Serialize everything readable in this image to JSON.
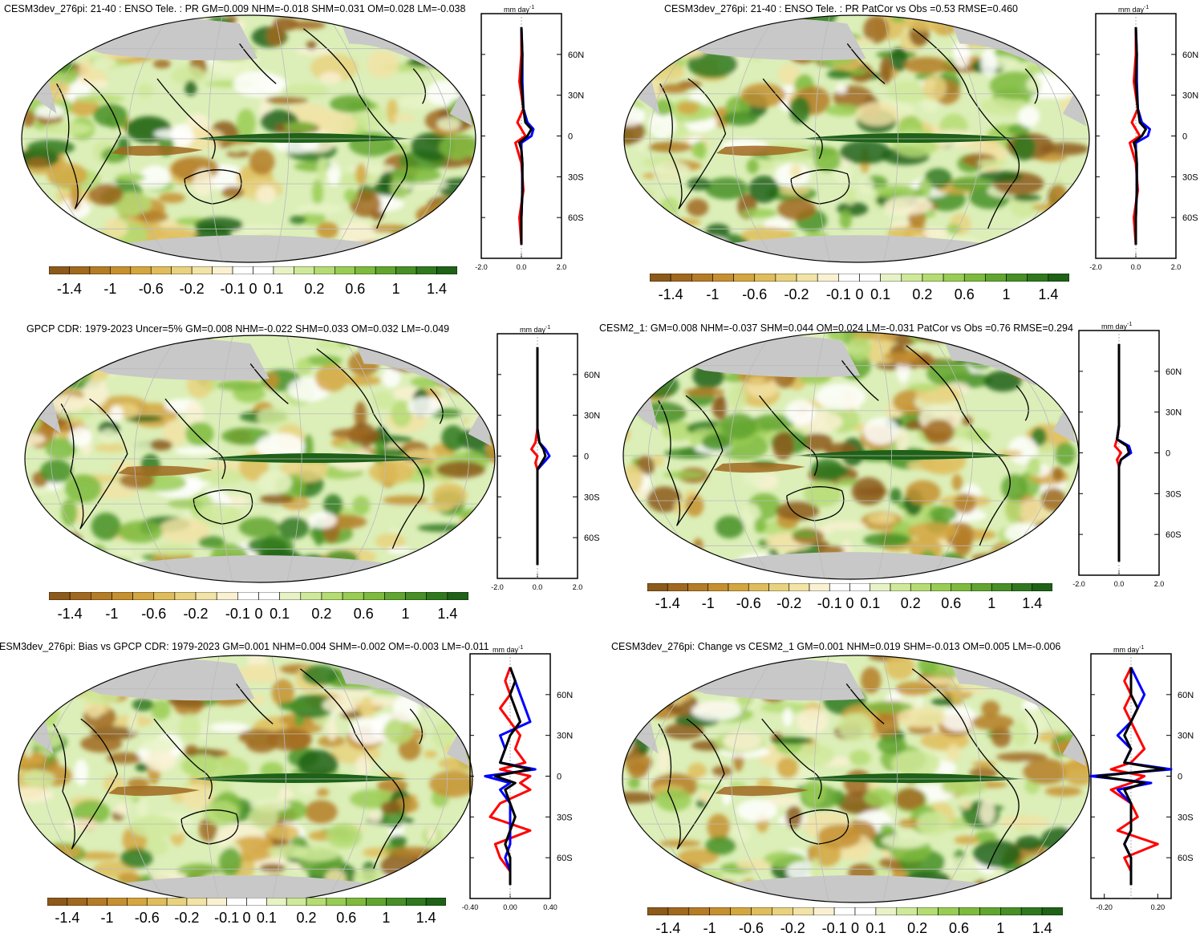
{
  "colorbar": {
    "labels": [
      "-1.4",
      "-1",
      "-0.6",
      "-0.2",
      "-0.1",
      "0",
      "0.1",
      "0.2",
      "0.6",
      "1",
      "1.4"
    ],
    "colors": [
      "#8c5a1a",
      "#a0691f",
      "#b47c27",
      "#c69030",
      "#d4a640",
      "#dfbd5c",
      "#e9d27f",
      "#f2e3a6",
      "#f9f1d2",
      "#ffffff",
      "#ffffff",
      "#e7f3c6",
      "#cfe99a",
      "#b5dc73",
      "#99cc54",
      "#7dba3d",
      "#61a530",
      "#478f26",
      "#2f781e",
      "#1e6117"
    ]
  },
  "zonal_common": {
    "unit": "mm day",
    "unit_exp": "-1",
    "lat_ticks": [
      "60N",
      "30N",
      "0",
      "30S",
      "60S"
    ]
  },
  "panels": [
    {
      "id": "p1",
      "title": "CESM3dev_276pi: 21-40 : ENSO Tele. : PR GM=0.009 NHM=-0.018 SHM=0.031 OM=0.028 LM=-0.038",
      "xticks": [
        "-2.0",
        "0.0",
        "2.0"
      ]
    },
    {
      "id": "p2",
      "title": "CESM3dev_276pi: 21-40 : ENSO Tele. : PR PatCor vs Obs =0.53 RMSE=0.460",
      "xticks": [
        "-2.0",
        "0.0",
        "2.0"
      ]
    },
    {
      "id": "p3",
      "title": "GPCP CDR: 1979-2023 Uncer=5% GM=0.008 NHM=-0.022 SHM=0.033 OM=0.032 LM=-0.049",
      "xticks": [
        "-2.0",
        "0.0",
        "2.0"
      ]
    },
    {
      "id": "p4",
      "title": "CESM2_1: GM=0.008 NHM=-0.037 SHM=0.044 OM=0.024 LM=-0.031 PatCor vs Obs =0.76 RMSE=0.294",
      "xticks": [
        "-2.0",
        "0.0",
        "2.0"
      ]
    },
    {
      "id": "p5",
      "title": "ESM3dev_276pi: Bias vs GPCP CDR: 1979-2023 GM=0.001 NHM=0.004 SHM=-0.002 OM=-0.003 LM=-0.011",
      "xticks": [
        "-0.40",
        "0.00",
        "0.40"
      ]
    },
    {
      "id": "p6",
      "title": "CESM3dev_276pi: Change vs CESM2_1 GM=0.001 NHM=0.019 SHM=-0.013 OM=0.005 LM=-0.006",
      "xticks": [
        "-0.20",
        "0.20"
      ]
    }
  ],
  "chart_data": [
    {
      "type": "heatmap",
      "title": "CESM3dev_276pi: 21-40 : ENSO Tele. : PR GM=0.009 NHM=-0.018 SHM=0.031 OM=0.028 LM=-0.038",
      "colorbar_levels": [
        -1.4,
        -1,
        -0.6,
        -0.2,
        -0.1,
        0,
        0.1,
        0.2,
        0.6,
        1,
        1.4
      ],
      "zonal_mean": {
        "type": "line",
        "xlim": [
          -2,
          2
        ],
        "ylim": [
          -90,
          90
        ],
        "series": [
          {
            "color": "#000000",
            "lat": [
              80,
              60,
              40,
              20,
              10,
              5,
              0,
              -5,
              -10,
              -20,
              -40,
              -60,
              -80
            ],
            "values": [
              0.0,
              0.05,
              0.0,
              0.1,
              0.2,
              0.5,
              0.3,
              -0.1,
              0.0,
              0.05,
              0.05,
              0.0,
              0.0
            ]
          },
          {
            "color": "#0000ff",
            "lat": [
              80,
              60,
              40,
              20,
              10,
              5,
              0,
              -5,
              -10,
              -20,
              -40,
              -60,
              -80
            ],
            "values": [
              0.0,
              0.05,
              0.05,
              0.1,
              0.3,
              0.6,
              0.5,
              0.0,
              0.0,
              0.05,
              0.05,
              0.0,
              0.0
            ]
          },
          {
            "color": "#ff0000",
            "lat": [
              80,
              60,
              40,
              20,
              10,
              5,
              0,
              -5,
              -10,
              -20,
              -40,
              -60,
              -80
            ],
            "values": [
              0.0,
              0.0,
              -0.1,
              0.1,
              -0.2,
              0.0,
              0.2,
              -0.3,
              -0.2,
              0.0,
              0.1,
              -0.1,
              0.0
            ]
          }
        ]
      }
    },
    {
      "type": "heatmap",
      "title": "CESM3dev_276pi: 21-40 : ENSO Tele. : PR PatCor vs Obs =0.53 RMSE=0.460",
      "colorbar_levels": [
        -1.4,
        -1,
        -0.6,
        -0.2,
        -0.1,
        0,
        0.1,
        0.2,
        0.6,
        1,
        1.4
      ],
      "zonal_mean": {
        "type": "line",
        "xlim": [
          -2,
          2
        ],
        "ylim": [
          -90,
          90
        ],
        "series": [
          {
            "color": "#000000",
            "lat": [
              80,
              60,
              40,
              20,
              10,
              5,
              0,
              -5,
              -10,
              -20,
              -40,
              -60,
              -80
            ],
            "values": [
              0.0,
              0.05,
              0.0,
              0.1,
              0.2,
              0.5,
              0.3,
              -0.1,
              0.0,
              0.05,
              0.05,
              0.0,
              0.0
            ]
          },
          {
            "color": "#0000ff",
            "lat": [
              80,
              60,
              40,
              20,
              10,
              5,
              0,
              -5,
              -10,
              -20,
              -40,
              -60,
              -80
            ],
            "values": [
              0.0,
              0.05,
              0.05,
              0.1,
              0.3,
              0.7,
              0.6,
              0.0,
              0.0,
              0.05,
              0.05,
              0.0,
              0.0
            ]
          },
          {
            "color": "#ff0000",
            "lat": [
              80,
              60,
              40,
              20,
              10,
              5,
              0,
              -5,
              -10,
              -20,
              -40,
              -60,
              -80
            ],
            "values": [
              0.0,
              0.0,
              -0.1,
              0.1,
              -0.2,
              0.0,
              0.2,
              -0.3,
              -0.2,
              0.0,
              0.1,
              -0.1,
              0.0
            ]
          }
        ]
      }
    },
    {
      "type": "heatmap",
      "title": "GPCP CDR: 1979-2023 Uncer=5% GM=0.008 NHM=-0.022 SHM=0.033 OM=0.032 LM=-0.049",
      "colorbar_levels": [
        -1.4,
        -1,
        -0.6,
        -0.2,
        -0.1,
        0,
        0.1,
        0.2,
        0.6,
        1,
        1.4
      ],
      "zonal_mean": {
        "type": "line",
        "xlim": [
          -2,
          2
        ],
        "ylim": [
          -90,
          90
        ],
        "series": [
          {
            "color": "#000000",
            "lat": [
              80,
              60,
              40,
              20,
              10,
              5,
              0,
              -5,
              -10,
              -20,
              -40,
              -60,
              -80
            ],
            "values": [
              0.0,
              0.0,
              0.0,
              0.0,
              0.1,
              0.3,
              0.4,
              0.2,
              0.0,
              0.0,
              0.0,
              0.0,
              0.0
            ]
          },
          {
            "color": "#0000ff",
            "lat": [
              80,
              60,
              40,
              20,
              10,
              5,
              0,
              -5,
              -10,
              -20,
              -40,
              -60,
              -80
            ],
            "values": [
              0.0,
              0.0,
              0.0,
              0.0,
              0.1,
              0.4,
              0.6,
              0.3,
              0.0,
              0.0,
              0.0,
              0.0,
              0.0
            ]
          },
          {
            "color": "#ff0000",
            "lat": [
              80,
              60,
              40,
              20,
              10,
              5,
              0,
              -5,
              -10,
              -20,
              -40,
              -60,
              -80
            ],
            "values": [
              0.0,
              0.0,
              0.0,
              0.0,
              -0.1,
              -0.3,
              0.0,
              -0.1,
              0.0,
              0.0,
              0.0,
              0.0,
              0.0
            ]
          }
        ]
      }
    },
    {
      "type": "heatmap",
      "title": "CESM2_1: GM=0.008 NHM=-0.037 SHM=0.044 OM=0.024 LM=-0.031 PatCor vs Obs =0.76 RMSE=0.294",
      "colorbar_levels": [
        -1.4,
        -1,
        -0.6,
        -0.2,
        -0.1,
        0,
        0.1,
        0.2,
        0.6,
        1,
        1.4
      ],
      "zonal_mean": {
        "type": "line",
        "xlim": [
          -2,
          2
        ],
        "ylim": [
          -90,
          90
        ],
        "series": [
          {
            "color": "#000000",
            "lat": [
              80,
              60,
              40,
              20,
              10,
              5,
              0,
              -5,
              -10,
              -20,
              -40,
              -60,
              -80
            ],
            "values": [
              0.0,
              0.0,
              0.0,
              0.0,
              -0.1,
              0.4,
              0.5,
              0.1,
              0.0,
              0.0,
              0.0,
              0.0,
              0.0
            ]
          },
          {
            "color": "#0000ff",
            "lat": [
              80,
              60,
              40,
              20,
              10,
              5,
              0,
              -5,
              -10,
              -20,
              -40,
              -60,
              -80
            ],
            "values": [
              0.0,
              0.0,
              0.0,
              0.0,
              -0.1,
              0.5,
              0.6,
              0.1,
              0.0,
              0.0,
              0.0,
              0.0,
              0.0
            ]
          },
          {
            "color": "#ff0000",
            "lat": [
              80,
              60,
              40,
              20,
              10,
              5,
              0,
              -5,
              -10,
              -20,
              -40,
              -60,
              -80
            ],
            "values": [
              0.0,
              0.0,
              0.0,
              0.0,
              -0.1,
              -0.2,
              0.1,
              -0.1,
              0.0,
              0.0,
              0.0,
              0.0,
              0.0
            ]
          }
        ]
      }
    },
    {
      "type": "heatmap",
      "title": "ESM3dev_276pi: Bias vs GPCP CDR: 1979-2023 GM=0.001 NHM=0.004 SHM=-0.002 OM=-0.003 LM=-0.011",
      "colorbar_levels": [
        -1.4,
        -1,
        -0.6,
        -0.2,
        -0.1,
        0,
        0.1,
        0.2,
        0.6,
        1,
        1.4
      ],
      "zonal_mean": {
        "type": "line",
        "xlim": [
          -0.4,
          0.4
        ],
        "ylim": [
          -90,
          90
        ],
        "series": [
          {
            "color": "#000000",
            "lat": [
              80,
              70,
              60,
              50,
              40,
              30,
              20,
              10,
              5,
              0,
              -5,
              -10,
              -20,
              -30,
              -40,
              -50,
              -60,
              -70,
              -80
            ],
            "values": [
              0.0,
              0.05,
              0.0,
              0.05,
              0.1,
              0.0,
              -0.05,
              -0.1,
              0.2,
              -0.15,
              0.05,
              -0.05,
              0.0,
              0.05,
              0.0,
              -0.05,
              0.0,
              0.0,
              0.0
            ]
          },
          {
            "color": "#0000ff",
            "lat": [
              80,
              70,
              60,
              50,
              40,
              30,
              20,
              10,
              5,
              0,
              -5,
              -10,
              -20,
              -30,
              -40,
              -50,
              -60,
              -70,
              -80
            ],
            "values": [
              0.0,
              0.05,
              0.1,
              0.15,
              0.2,
              -0.1,
              -0.05,
              -0.1,
              0.25,
              -0.25,
              0.0,
              -0.1,
              0.0,
              0.0,
              0.0,
              0.0,
              -0.05,
              0.0,
              0.0
            ]
          },
          {
            "color": "#ff0000",
            "lat": [
              80,
              70,
              60,
              50,
              40,
              30,
              20,
              10,
              5,
              0,
              -5,
              -10,
              -20,
              -30,
              -40,
              -50,
              -60,
              -70,
              -80
            ],
            "values": [
              0.0,
              -0.05,
              0.0,
              -0.1,
              0.0,
              0.1,
              0.05,
              0.15,
              -0.1,
              0.2,
              0.1,
              0.2,
              -0.1,
              -0.2,
              0.2,
              -0.15,
              -0.1,
              0.0,
              0.0
            ]
          }
        ]
      }
    },
    {
      "type": "heatmap",
      "title": "CESM3dev_276pi: Change vs CESM2_1 GM=0.001 NHM=0.019 SHM=-0.013 OM=0.005 LM=-0.006",
      "colorbar_levels": [
        -1.4,
        -1,
        -0.6,
        -0.2,
        -0.1,
        0,
        0.1,
        0.2,
        0.6,
        1,
        1.4
      ],
      "zonal_mean": {
        "type": "line",
        "xlim": [
          -0.3,
          0.3
        ],
        "ylim": [
          -90,
          90
        ],
        "series": [
          {
            "color": "#000000",
            "lat": [
              80,
              70,
              60,
              50,
              40,
              30,
              20,
              10,
              5,
              0,
              -5,
              -10,
              -20,
              -30,
              -40,
              -50,
              -60,
              -70,
              -80
            ],
            "values": [
              0.0,
              0.0,
              0.0,
              0.05,
              0.0,
              -0.05,
              0.0,
              -0.05,
              0.25,
              -0.25,
              0.1,
              -0.05,
              0.0,
              0.0,
              0.0,
              -0.05,
              0.0,
              0.0,
              0.0
            ]
          },
          {
            "color": "#0000ff",
            "lat": [
              80,
              70,
              60,
              50,
              40,
              30,
              20,
              10,
              5,
              0,
              -5,
              -10,
              -20,
              -30,
              -40,
              -50,
              -60,
              -70,
              -80
            ],
            "values": [
              0.0,
              0.05,
              0.1,
              0.05,
              0.0,
              -0.1,
              0.0,
              -0.05,
              0.3,
              -0.3,
              0.15,
              -0.1,
              0.0,
              0.0,
              0.0,
              -0.05,
              0.0,
              0.0,
              0.0
            ]
          },
          {
            "color": "#ff0000",
            "lat": [
              80,
              70,
              60,
              50,
              40,
              30,
              20,
              10,
              5,
              0,
              -5,
              -10,
              -20,
              -30,
              -40,
              -50,
              -60,
              -70,
              -80
            ],
            "values": [
              0.0,
              -0.05,
              0.0,
              -0.05,
              0.0,
              0.05,
              0.1,
              0.0,
              -0.15,
              0.1,
              0.0,
              -0.15,
              0.0,
              0.05,
              -0.1,
              0.2,
              -0.05,
              0.0,
              0.0
            ]
          }
        ]
      }
    }
  ]
}
